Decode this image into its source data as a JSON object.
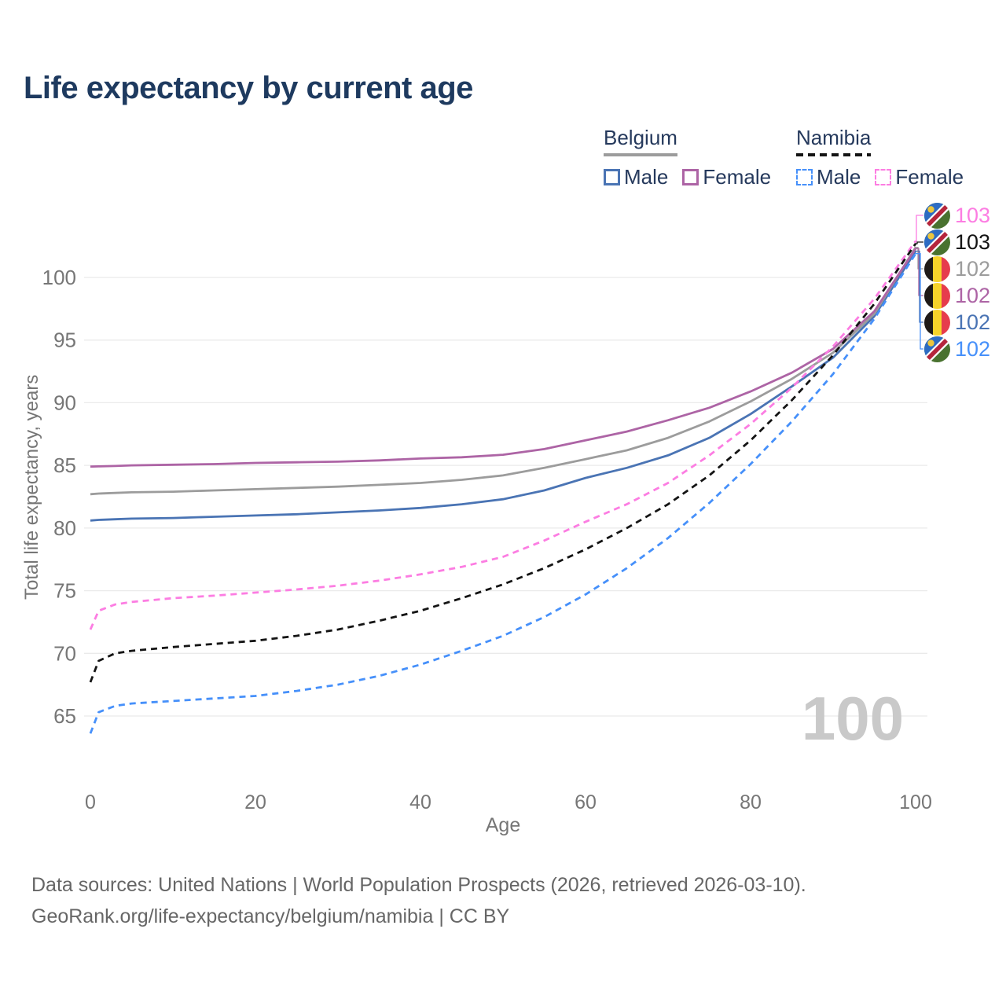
{
  "title": "Life expectancy by current age",
  "legend": {
    "groups": [
      {
        "name": "Belgium",
        "style": "solid",
        "underline_color": "#9c9c9c",
        "items": [
          {
            "label": "Male",
            "color": "#4a74b4",
            "dashed": false
          },
          {
            "label": "Female",
            "color": "#ad64a5",
            "dashed": false
          }
        ]
      },
      {
        "name": "Namibia",
        "style": "dashed",
        "underline_color": "#141414",
        "items": [
          {
            "label": "Male",
            "color": "#4690fa",
            "dashed": true
          },
          {
            "label": "Female",
            "color": "#fc7de2",
            "dashed": true
          }
        ]
      }
    ]
  },
  "chart_data": {
    "type": "line",
    "title": "Life expectancy by current age",
    "xlabel": "Age",
    "ylabel": "Total life expectancy, years",
    "x_ticks": [
      0,
      20,
      40,
      60,
      80,
      100
    ],
    "y_ticks": [
      65,
      70,
      75,
      80,
      85,
      90,
      95,
      100
    ],
    "xlim": [
      0,
      100
    ],
    "ylim": [
      63,
      104
    ],
    "grid": "horizontal",
    "watermark": "100",
    "ages": [
      0,
      1,
      3,
      5,
      10,
      15,
      20,
      25,
      30,
      35,
      40,
      45,
      50,
      55,
      60,
      65,
      70,
      75,
      80,
      85,
      90,
      95,
      100
    ],
    "series": [
      {
        "id": "belgium_male",
        "name": "Belgium Male",
        "country": "Belgium",
        "sex": "Male",
        "style": "solid",
        "color": "#4a74b4",
        "values": [
          80.6,
          80.65,
          80.7,
          80.75,
          80.8,
          80.9,
          81.0,
          81.1,
          81.25,
          81.4,
          81.6,
          81.9,
          82.3,
          83.0,
          84.0,
          84.8,
          85.8,
          87.2,
          89.1,
          91.3,
          93.6,
          96.9,
          102.1
        ]
      },
      {
        "id": "belgium_total",
        "name": "Belgium",
        "country": "Belgium",
        "sex": "Both",
        "style": "solid",
        "color": "#9c9c9c",
        "values": [
          82.7,
          82.75,
          82.8,
          82.85,
          82.9,
          83.0,
          83.1,
          83.2,
          83.3,
          83.45,
          83.6,
          83.85,
          84.2,
          84.8,
          85.5,
          86.2,
          87.2,
          88.5,
          90.1,
          91.9,
          94.0,
          97.1,
          102.4
        ]
      },
      {
        "id": "belgium_female",
        "name": "Belgium Female",
        "country": "Belgium",
        "sex": "Female",
        "style": "solid",
        "color": "#ad64a5",
        "values": [
          84.9,
          84.92,
          84.95,
          85.0,
          85.05,
          85.1,
          85.2,
          85.25,
          85.3,
          85.4,
          85.55,
          85.65,
          85.85,
          86.3,
          87.0,
          87.7,
          88.6,
          89.6,
          90.9,
          92.4,
          94.3,
          97.3,
          102.3
        ]
      },
      {
        "id": "namibia_male",
        "name": "Namibia Male",
        "country": "Namibia",
        "sex": "Male",
        "style": "dashed",
        "color": "#4690fa",
        "values": [
          63.6,
          65.3,
          65.8,
          66.0,
          66.2,
          66.4,
          66.6,
          67.0,
          67.5,
          68.2,
          69.1,
          70.2,
          71.4,
          72.9,
          74.7,
          76.8,
          79.2,
          82.0,
          85.1,
          88.5,
          92.3,
          96.7,
          101.9
        ]
      },
      {
        "id": "namibia_female",
        "name": "Namibia Female",
        "country": "Namibia",
        "sex": "Female",
        "style": "dashed",
        "color": "#fc7de2",
        "values": [
          71.9,
          73.4,
          73.9,
          74.1,
          74.4,
          74.6,
          74.85,
          75.1,
          75.4,
          75.8,
          76.3,
          76.9,
          77.7,
          79.0,
          80.5,
          81.9,
          83.6,
          85.8,
          88.3,
          91.2,
          94.5,
          98.3,
          102.9
        ]
      },
      {
        "id": "namibia_total",
        "name": "Namibia",
        "country": "Namibia",
        "sex": "Both",
        "style": "dashed",
        "color": "#141414",
        "values": [
          67.7,
          69.4,
          70.0,
          70.2,
          70.5,
          70.75,
          71.0,
          71.4,
          71.9,
          72.6,
          73.4,
          74.4,
          75.5,
          76.8,
          78.3,
          80.0,
          81.9,
          84.2,
          87.0,
          90.2,
          93.8,
          97.9,
          102.7
        ]
      }
    ],
    "end_labels": [
      {
        "value": "103",
        "series": "namibia_female",
        "flag": "namibia",
        "color": "#fc7de2"
      },
      {
        "value": "103",
        "series": "namibia_total",
        "flag": "namibia",
        "color": "#141414"
      },
      {
        "value": "102",
        "series": "belgium_total",
        "flag": "belgium",
        "color": "#9c9c9c"
      },
      {
        "value": "102",
        "series": "belgium_female",
        "flag": "belgium",
        "color": "#ad64a5"
      },
      {
        "value": "102",
        "series": "belgium_male",
        "flag": "belgium",
        "color": "#4a74b4"
      },
      {
        "value": "102",
        "series": "namibia_male",
        "flag": "namibia",
        "color": "#4690fa"
      }
    ]
  },
  "footer": {
    "line1": "Data sources: United Nations | World Population Prospects (2026, retrieved 2026-03-10).",
    "line2": "GeoRank.org/life-expectancy/belgium/namibia | CC BY"
  }
}
